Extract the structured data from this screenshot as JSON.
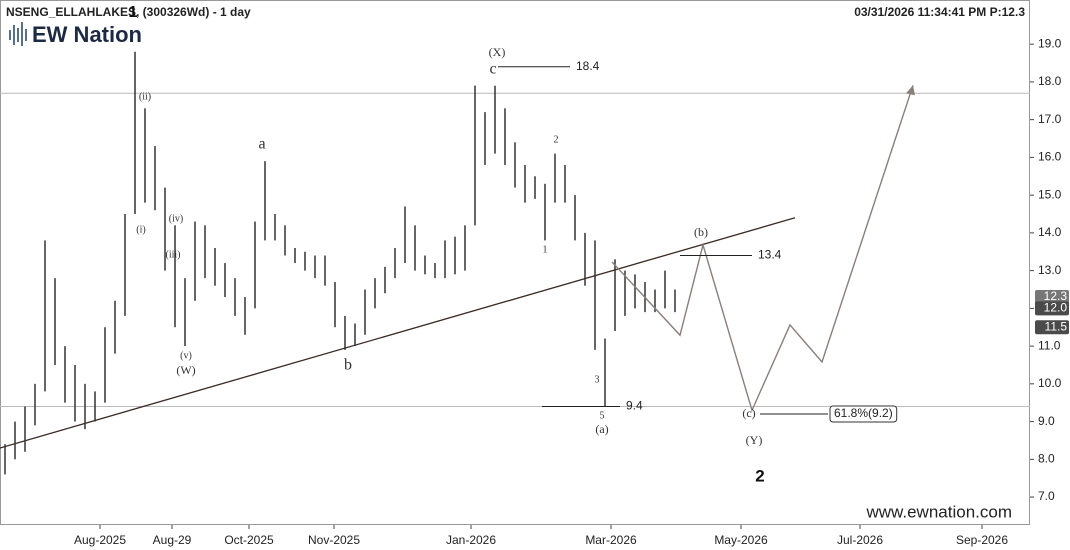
{
  "chart_data": {
    "type": "hlbar",
    "title": "NSENG_ELLAHLAKES, (300326Wd) - 1 day",
    "timestamp": "03/31/2026 11:34:41 PM  P:12.3",
    "logo": "EW Nation",
    "watermark": "www.ewnation.com",
    "color": "#333333",
    "xlim": [
      0,
      103
    ],
    "xticks": [
      {
        "value": 10,
        "label": "Aug-2025"
      },
      {
        "value": 17.2,
        "label": "Aug-29"
      },
      {
        "value": 24.9,
        "label": "Oct-2025"
      },
      {
        "value": 33.4,
        "label": "Nov-2025"
      },
      {
        "value": 47.1,
        "label": "Jan-2026"
      },
      {
        "value": 61.1,
        "label": "Mar-2026"
      },
      {
        "value": 74.1,
        "label": "May-2026"
      },
      {
        "value": 86,
        "label": "Jul-2026"
      },
      {
        "value": 98.2,
        "label": "Sep-2026"
      }
    ],
    "ylim": [
      6.26,
      20.17
    ],
    "yticks": [
      {
        "value": 7,
        "label": "7.0"
      },
      {
        "value": 8,
        "label": "8.0"
      },
      {
        "value": 9,
        "label": "9.0"
      },
      {
        "value": 10,
        "label": "10.0"
      },
      {
        "value": 11,
        "label": "11.0"
      },
      {
        "value": 12,
        "label": "12.0"
      },
      {
        "value": 13,
        "label": "13.0"
      },
      {
        "value": 14,
        "label": "14.0"
      },
      {
        "value": 15,
        "label": "15.0"
      },
      {
        "value": 16,
        "label": "16.0"
      },
      {
        "value": 17,
        "label": "17.0"
      },
      {
        "value": 18,
        "label": "18.0"
      },
      {
        "value": 19,
        "label": "19.0"
      }
    ],
    "x": [
      0.5,
      1.5,
      2.5,
      3.5,
      4.5,
      5.5,
      6.5,
      7.5,
      8.5,
      9.5,
      10.5,
      11.5,
      12.5,
      13.5,
      14.5,
      15.5,
      16.5,
      17.5,
      18.5,
      19.5,
      20.5,
      21.5,
      22.5,
      23.5,
      24.5,
      25.5,
      26.5,
      27.5,
      28.5,
      29.5,
      30.5,
      31.5,
      32.5,
      33.5,
      34.5,
      35.5,
      36.5,
      37.5,
      38.5,
      39.5,
      40.5,
      41.5,
      42.5,
      43.5,
      44.5,
      45.5,
      46.5,
      47.5,
      48.5,
      49.5,
      50.5,
      51.5,
      52.5,
      53.5,
      54.5,
      55.5,
      56.5,
      57.5,
      58.5,
      59.5,
      60.5,
      61.5,
      62.5,
      63.5,
      64.5,
      65.5,
      66.5,
      67.5
    ],
    "high": [
      8.4,
      9.0,
      9.4,
      10.0,
      13.8,
      12.8,
      11.0,
      10.5,
      10.0,
      9.8,
      11.5,
      12.2,
      14.5,
      18.8,
      17.3,
      16.3,
      15.2,
      14.2,
      12.8,
      14.3,
      14.2,
      13.6,
      13.2,
      12.8,
      12.3,
      14.3,
      15.9,
      14.5,
      14.2,
      13.6,
      13.5,
      13.4,
      13.4,
      12.7,
      11.8,
      11.6,
      12.5,
      12.8,
      13.1,
      13.6,
      14.7,
      14.2,
      13.4,
      13.2,
      13.8,
      13.9,
      14.2,
      17.9,
      17.2,
      17.9,
      17.3,
      16.4,
      15.8,
      15.5,
      15.3,
      16.1,
      15.8,
      15.0,
      14.0,
      13.8,
      11.2,
      13.3,
      13.0,
      12.9,
      12.7,
      12.5,
      13.0,
      12.5
    ],
    "low": [
      7.6,
      8.0,
      8.2,
      8.9,
      9.8,
      10.5,
      9.5,
      9.0,
      8.8,
      9.0,
      9.5,
      10.8,
      11.8,
      14.5,
      14.8,
      14.6,
      13.0,
      11.5,
      11.0,
      12.2,
      12.8,
      12.6,
      12.3,
      11.8,
      11.3,
      12.0,
      13.8,
      13.8,
      13.4,
      13.2,
      13.0,
      12.8,
      12.6,
      11.5,
      10.9,
      11.0,
      11.3,
      12.0,
      12.4,
      12.8,
      13.2,
      13.0,
      12.9,
      12.8,
      12.8,
      12.9,
      13.0,
      14.2,
      15.8,
      16.1,
      15.8,
      15.2,
      14.8,
      14.9,
      13.8,
      14.8,
      14.8,
      13.8,
      12.6,
      10.9,
      9.4,
      11.4,
      11.8,
      12.0,
      11.9,
      11.9,
      12.0,
      11.9
    ],
    "trendline": {
      "x": [
        0,
        79.5
      ],
      "y": [
        8.3,
        14.4
      ],
      "color": "#3a2a22"
    },
    "projection": {
      "x": [
        61.2,
        68,
        70.3,
        75.2,
        79,
        82.2,
        91.3
      ],
      "y": [
        13.23,
        11.29,
        13.68,
        9.3,
        11.56,
        10.58,
        17.91
      ],
      "color": "#8a7f78"
    },
    "hlines": [
      17.7,
      9.4
    ],
    "levels": [
      {
        "label": "18.4",
        "value": 18.4,
        "x": [
          49.8,
          57
        ]
      },
      {
        "label": "9.4",
        "value": 9.4,
        "x": [
          54.2,
          62
        ]
      },
      {
        "label": "13.4",
        "value": 13.4,
        "x": [
          68,
          75.2
        ]
      },
      {
        "label": "61.8%(9.2)",
        "value": 9.2,
        "x": [
          76,
          82.8
        ]
      }
    ],
    "annotations": [
      "(X)",
      "c",
      "(ii)",
      "1",
      "(i)",
      "(iv)",
      "(iii)",
      "(v)",
      "(W)",
      "a",
      "b",
      "2",
      "1",
      "3",
      "5",
      "(a)",
      "(b)",
      "(c)",
      "(Y)",
      "2"
    ],
    "price_tags": [
      {
        "value": 12.3,
        "label": "12.3",
        "color": "#777777"
      },
      {
        "value": 12,
        "label": "12.0",
        "color": "#4a4a4a"
      },
      {
        "value": 11.5,
        "label": "11.5",
        "color": "#4a4a4a"
      }
    ]
  }
}
